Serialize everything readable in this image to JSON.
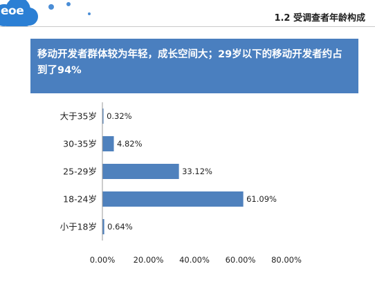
{
  "logo": {
    "text": "eoe"
  },
  "header": {
    "section_title": "1.2 受调查者年龄构成"
  },
  "banner": {
    "text": "移动开发者群体较为年轻，成长空间大；29岁以下的移动开发者约占到了94%"
  },
  "colors": {
    "accent": "#4a7fbf",
    "bar": "#4f81bd",
    "logo": "#2b7fd4"
  },
  "chart_data": {
    "type": "bar",
    "orientation": "horizontal",
    "categories": [
      "大于35岁",
      "30-35岁",
      "25-29岁",
      "18-24岁",
      "小于18岁"
    ],
    "values": [
      0.32,
      4.82,
      33.12,
      61.09,
      0.64
    ],
    "value_labels": [
      "0.32%",
      "4.82%",
      "33.12%",
      "61.09%",
      "0.64%"
    ],
    "xlim": [
      0,
      80
    ],
    "x_ticks": [
      0,
      20,
      40,
      60,
      80
    ],
    "x_tick_labels": [
      "0.00%",
      "20.00%",
      "40.00%",
      "60.00%",
      "80.00%"
    ],
    "grid": false,
    "legend": "none"
  }
}
